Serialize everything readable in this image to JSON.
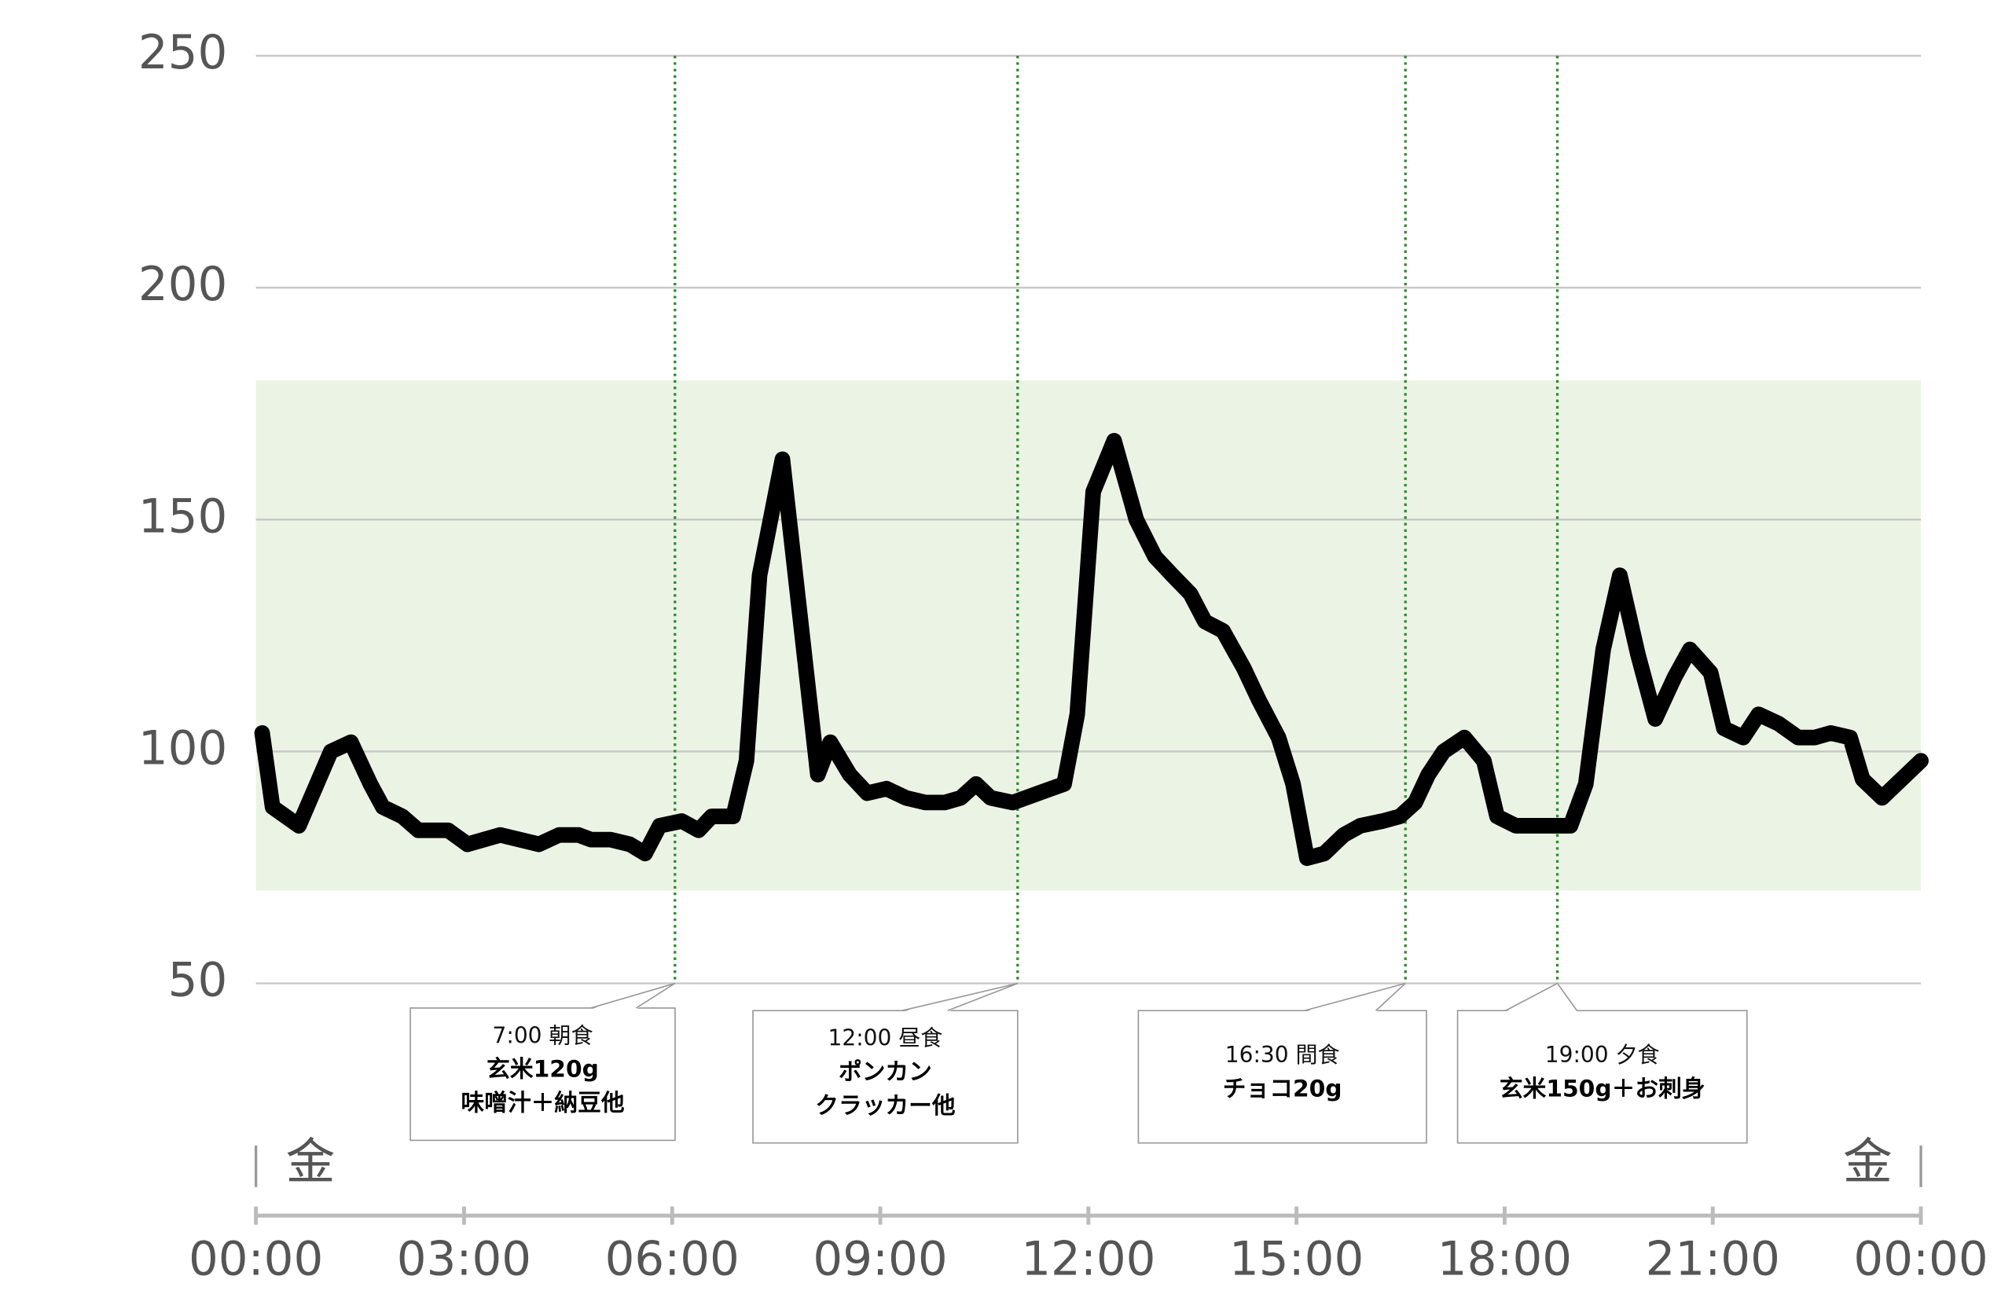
{
  "chart_data": {
    "type": "line",
    "ylim": [
      50,
      250
    ],
    "yticks": [
      50,
      100,
      150,
      200,
      250
    ],
    "xlim": [
      0,
      24
    ],
    "xticks": [
      {
        "value": 0,
        "label": "00:00"
      },
      {
        "value": 3,
        "label": "03:00"
      },
      {
        "value": 6,
        "label": "06:00"
      },
      {
        "value": 9,
        "label": "09:00"
      },
      {
        "value": 12,
        "label": "12:00"
      },
      {
        "value": 15,
        "label": "15:00"
      },
      {
        "value": 18,
        "label": "18:00"
      },
      {
        "value": 21,
        "label": "21:00"
      },
      {
        "value": 24,
        "label": "00:00"
      }
    ],
    "grid": true,
    "target_range": [
      70,
      180
    ],
    "target_color": "#ebf4e4",
    "day_labels": [
      "金",
      "金"
    ],
    "x": [
      0.09,
      0.24,
      0.62,
      1.08,
      1.37,
      1.65,
      1.83,
      2.11,
      2.34,
      2.77,
      3.05,
      3.52,
      4.08,
      4.37,
      4.65,
      4.83,
      5.11,
      5.39,
      5.61,
      5.82,
      6.14,
      6.38,
      6.57,
      6.88,
      7.07,
      7.26,
      7.59,
      8.1,
      8.28,
      8.56,
      8.81,
      9.09,
      9.37,
      9.65,
      9.93,
      10.16,
      10.38,
      10.59,
      10.91,
      11.28,
      11.65,
      11.84,
      12.07,
      12.37,
      12.69,
      12.96,
      13.21,
      13.47,
      13.68,
      13.94,
      14.24,
      14.46,
      14.74,
      14.95,
      15.15,
      15.4,
      15.68,
      15.92,
      16.24,
      16.49,
      16.71,
      16.9,
      17.12,
      17.42,
      17.7,
      17.89,
      18.16,
      18.95,
      19.17,
      19.42,
      19.66,
      19.92,
      20.17,
      20.45,
      20.67,
      20.97,
      21.16,
      21.44,
      21.66,
      21.95,
      22.23,
      22.47,
      22.7,
      22.98,
      23.16,
      23.44,
      24.0
    ],
    "series": [
      {
        "color": "#000000",
        "values": [
          104,
          88,
          84,
          100,
          102,
          93,
          88,
          86,
          83,
          83,
          80,
          82,
          80,
          82,
          82,
          81,
          81,
          80,
          78,
          84,
          85,
          83,
          86,
          86,
          98,
          138,
          163,
          95,
          102,
          95,
          91,
          92,
          90,
          89,
          89,
          90,
          93,
          90,
          89,
          91,
          93,
          108,
          156,
          167,
          150,
          142,
          138,
          134,
          128,
          126,
          118,
          111,
          103,
          93,
          77,
          78,
          82,
          84,
          85,
          86,
          89,
          95,
          100,
          103,
          98,
          86,
          84,
          84,
          93,
          122,
          138,
          121,
          107,
          116,
          122,
          117,
          105,
          103,
          108,
          106,
          103,
          103,
          104,
          103,
          94,
          90,
          98
        ]
      }
    ],
    "annotations": [
      {
        "x": 6.04,
        "color": "#2e8b2e",
        "text": [
          "7:00 朝食",
          "玄米120g",
          "味噌汁＋納豆他"
        ]
      },
      {
        "x": 10.98,
        "color": "#2e8b2e",
        "text": [
          "12:00 昼食",
          "ポンカン",
          "クラッカー他"
        ]
      },
      {
        "x": 16.57,
        "color": "#2e8b2e",
        "text": [
          "16:30 間食",
          "チョコ20g"
        ]
      },
      {
        "x": 18.76,
        "color": "#2e8b2e",
        "text": [
          "19:00 夕食",
          "玄米150g＋お刺身"
        ]
      }
    ]
  }
}
